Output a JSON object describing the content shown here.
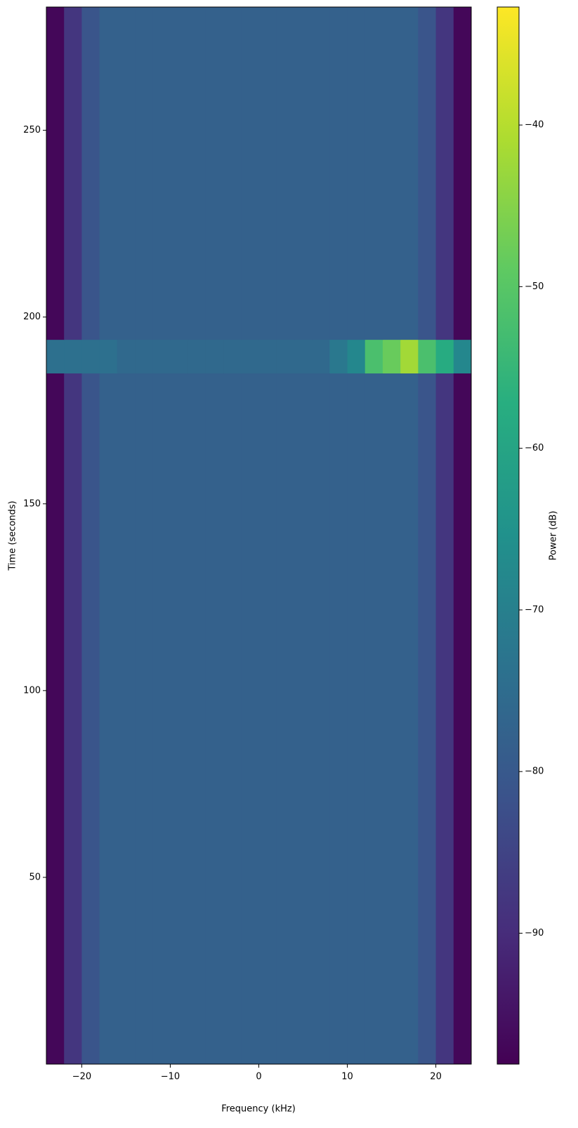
{
  "chart_data": {
    "type": "heatmap",
    "xlabel": "Frequency (kHz)",
    "ylabel": "Time (seconds)",
    "colorbar_label": "Power (dB)",
    "cmap": "viridis",
    "xlim": [
      -24,
      24
    ],
    "ylim": [
      0,
      283
    ],
    "clim": [
      -98.1,
      -32.7
    ],
    "xticks": [
      {
        "value": -20,
        "label": "−20"
      },
      {
        "value": -10,
        "label": "−10"
      },
      0,
      10,
      20
    ],
    "yticks": [
      50,
      100,
      150,
      200,
      250
    ],
    "cticks": [
      {
        "value": -90,
        "label": "−90"
      },
      {
        "value": -80,
        "label": "−80"
      },
      {
        "value": -70,
        "label": "−70"
      },
      {
        "value": -60,
        "label": "−60"
      },
      {
        "value": -50,
        "label": "−50"
      },
      {
        "value": -40,
        "label": "−40"
      }
    ],
    "x_edges": [
      -24,
      -22,
      -20,
      -18,
      -16,
      -14,
      -12,
      -10,
      -8,
      -6,
      -4,
      -2,
      0,
      2,
      4,
      6,
      8,
      10,
      12,
      14,
      16,
      18,
      20,
      22,
      24
    ],
    "y_edges": [
      0,
      185,
      194,
      283
    ],
    "z": [
      [
        -97,
        -88,
        -81,
        -78,
        -78,
        -78,
        -78,
        -78,
        -78,
        -78,
        -78,
        -78,
        -78,
        -78,
        -78,
        -78,
        -78,
        -78,
        -78,
        -78,
        -78,
        -81,
        -88,
        -97
      ],
      [
        -74,
        -74,
        -74,
        -74,
        -76,
        -76,
        -76,
        -76,
        -76,
        -76,
        -76,
        -76,
        -76,
        -76,
        -76,
        -76,
        -72,
        -68,
        -52,
        -48,
        -42,
        -52,
        -58,
        -68
      ],
      [
        -97,
        -88,
        -81,
        -78,
        -78,
        -78,
        -78,
        -78,
        -78,
        -78,
        -78,
        -78,
        -78,
        -78,
        -78,
        -78,
        -78,
        -78,
        -78,
        -78,
        -78,
        -81,
        -88,
        -97
      ]
    ]
  }
}
